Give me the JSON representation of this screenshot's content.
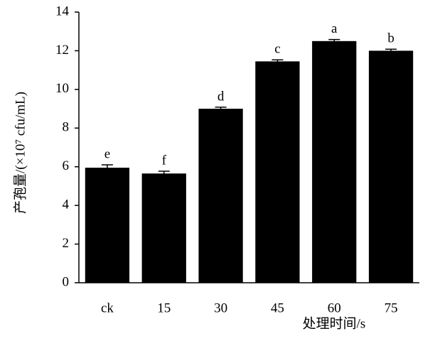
{
  "chart_data": {
    "type": "bar",
    "y_label": "产孢量/(×10⁷ cfu/mL)",
    "x_label": "处理时间/s",
    "categories": [
      "ck",
      "15",
      "30",
      "45",
      "60",
      "75"
    ],
    "values": [
      5.95,
      5.65,
      9.0,
      11.45,
      12.5,
      12.0
    ],
    "errors": [
      0.15,
      0.12,
      0.08,
      0.08,
      0.08,
      0.08
    ],
    "annotations": [
      "e",
      "f",
      "d",
      "c",
      "a",
      "b"
    ],
    "color": "#000000",
    "ylim": [
      0,
      14
    ],
    "yticks": [
      0,
      2,
      4,
      6,
      8,
      10,
      12,
      14
    ]
  }
}
